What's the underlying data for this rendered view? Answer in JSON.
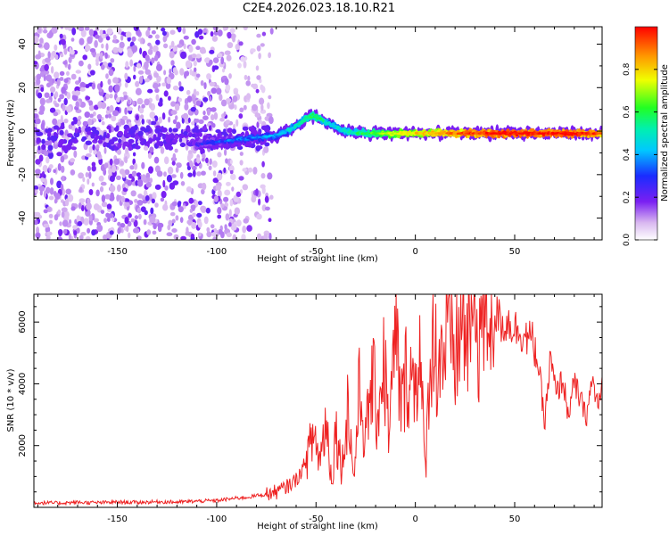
{
  "figure_title": "C2E4.2026.023.18.10.R21",
  "colors": {
    "snr_line": "#ee2222",
    "axis": "#000000",
    "background": "#ffffff"
  },
  "chart_data": [
    {
      "id": "spectrogram",
      "type": "heatmap",
      "title": "",
      "xlabel": "Height of straight line (km)",
      "ylabel": "Frequency (Hz)",
      "xlim": [
        -192,
        94
      ],
      "ylim": [
        -50,
        48
      ],
      "x_ticks": [
        -150,
        -100,
        -50,
        0,
        50
      ],
      "y_ticks": [
        -40,
        -20,
        0,
        20,
        40
      ],
      "x_tick_labels": [
        "-150",
        "-100",
        "-50",
        "0",
        "50"
      ],
      "y_tick_labels": [
        "-40",
        "-20",
        "0",
        "20",
        "40"
      ],
      "colorbar": {
        "label": "Normalized spectral amplitude",
        "range": [
          0.0,
          1.0
        ],
        "ticks": [
          0.0,
          0.2,
          0.4,
          0.6,
          0.8
        ],
        "tick_labels": [
          "0.0",
          "0.2",
          "0.4",
          "0.6",
          "0.8"
        ],
        "colormap": "rainbow (white-purple-blue-cyan-green-yellow-orange-red)"
      },
      "description_points": {
        "noise_region_x": [
          -192,
          -72
        ],
        "noise_frequency_span": [
          -50,
          48
        ],
        "signal_track": {
          "x": [
            -110,
            -100,
            -90,
            -80,
            -70,
            -60,
            -55,
            -50,
            -45,
            -40,
            -35,
            -30,
            -20,
            -10,
            0,
            10,
            20,
            30,
            40,
            50,
            60,
            70,
            80,
            90,
            94
          ],
          "frequency": [
            -6,
            -5,
            -4,
            -3,
            -2,
            2,
            6,
            7,
            4,
            2,
            0,
            -1,
            -1,
            -1,
            -1,
            -1,
            -1,
            -1,
            -1,
            -1,
            -1,
            -1,
            -1,
            -1,
            -1
          ],
          "amplitude": [
            0.2,
            0.25,
            0.3,
            0.3,
            0.35,
            0.45,
            0.55,
            0.55,
            0.45,
            0.4,
            0.45,
            0.5,
            0.6,
            0.7,
            0.75,
            0.8,
            0.85,
            0.9,
            0.95,
            0.95,
            0.95,
            0.95,
            0.95,
            0.9,
            0.85
          ]
        }
      }
    },
    {
      "id": "snr",
      "type": "line",
      "title": "",
      "xlabel": "Height of straight line (km)",
      "ylabel": "SNR (10 * v/v)",
      "xlim": [
        -192,
        94
      ],
      "ylim": [
        0,
        6900
      ],
      "x_ticks": [
        -150,
        -100,
        -50,
        0,
        50
      ],
      "y_ticks": [
        2000,
        4000,
        6000
      ],
      "x_tick_labels": [
        "-150",
        "-100",
        "-50",
        "0",
        "50"
      ],
      "y_tick_labels": [
        "2000",
        "4000",
        "6000"
      ],
      "series": [
        {
          "name": "SNR",
          "x": [
            -192,
            -180,
            -170,
            -160,
            -150,
            -140,
            -130,
            -120,
            -110,
            -100,
            -95,
            -90,
            -85,
            -80,
            -75,
            -70,
            -65,
            -60,
            -57,
            -54,
            -51,
            -48,
            -45,
            -42,
            -40,
            -37,
            -34,
            -31,
            -28,
            -25,
            -22,
            -19,
            -16,
            -13,
            -10,
            -7,
            -4,
            -1,
            2,
            5,
            8,
            11,
            14,
            17,
            20,
            23,
            26,
            29,
            32,
            35,
            38,
            41,
            44,
            47,
            50,
            53,
            56,
            59,
            62,
            65,
            68,
            71,
            74,
            77,
            80,
            83,
            86,
            89,
            92,
            94
          ],
          "values": [
            150,
            140,
            160,
            150,
            170,
            160,
            180,
            170,
            200,
            220,
            260,
            300,
            320,
            380,
            420,
            500,
            650,
            900,
            1200,
            1700,
            2400,
            1500,
            2900,
            800,
            2600,
            1200,
            3400,
            900,
            3900,
            2100,
            4200,
            3000,
            4800,
            2400,
            5600,
            3200,
            4600,
            3900,
            5200,
            1100,
            5700,
            4800,
            5100,
            5400,
            4900,
            6000,
            5600,
            6300,
            5800,
            6400,
            6750,
            6200,
            5900,
            6000,
            5800,
            5700,
            5500,
            5400,
            4600,
            2700,
            4800,
            3600,
            4200,
            3000,
            4000,
            3500,
            2900,
            4100,
            3300,
            3800
          ]
        }
      ]
    }
  ]
}
